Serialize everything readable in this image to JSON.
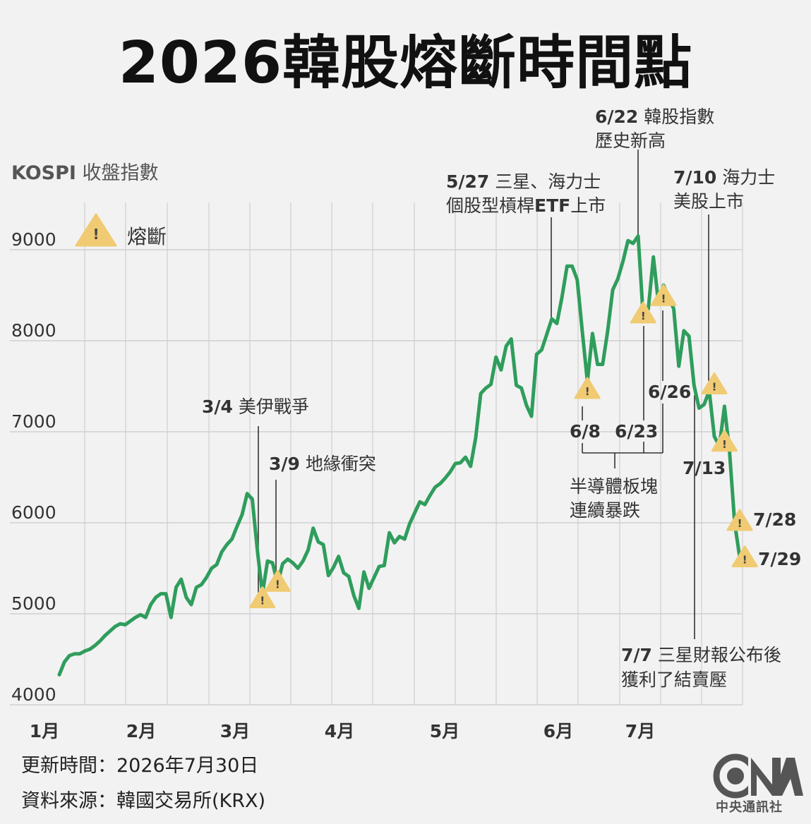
{
  "title": "2026韓股熔斷時間點",
  "chart_data": {
    "type": "line",
    "ylabel_bold": "KOSPI",
    "ylabel_rest": " 收盤指數",
    "legend_label": "熔斷",
    "yticks": [
      4000,
      5000,
      6000,
      7000,
      8000,
      9000
    ],
    "ylim": [
      4000,
      9300
    ],
    "month_labels": [
      "1月",
      "2月",
      "3月",
      "4月",
      "5月",
      "6月",
      "7月"
    ],
    "series": [
      {
        "color": "#2f9d5c",
        "values": [
          4330,
          4470,
          4540,
          4560,
          4560,
          4590,
          4610,
          4650,
          4700,
          4760,
          4810,
          4860,
          4890,
          4880,
          4920,
          4960,
          4990,
          4960,
          5100,
          5180,
          5220,
          5220,
          4960,
          5290,
          5380,
          5180,
          5100,
          5290,
          5320,
          5400,
          5500,
          5540,
          5680,
          5760,
          5820,
          5960,
          6090,
          6320,
          6260,
          5700,
          5220,
          5580,
          5560,
          5330,
          5550,
          5600,
          5560,
          5500,
          5580,
          5700,
          5940,
          5790,
          5760,
          5420,
          5510,
          5630,
          5450,
          5410,
          5200,
          5060,
          5460,
          5280,
          5400,
          5520,
          5530,
          5890,
          5780,
          5850,
          5820,
          5990,
          6110,
          6230,
          6200,
          6300,
          6390,
          6430,
          6490,
          6560,
          6650,
          6660,
          6720,
          6620,
          6930,
          7420,
          7480,
          7520,
          7820,
          7680,
          7940,
          8020,
          7510,
          7480,
          7290,
          7170,
          7850,
          7900,
          8070,
          8240,
          8190,
          8480,
          8820,
          8820,
          8670,
          8100,
          7550,
          8080,
          7740,
          7740,
          8110,
          8560,
          8680,
          8870,
          9100,
          9070,
          9150,
          8260,
          8350,
          8920,
          8410,
          8610,
          8480,
          8350,
          7720,
          8110,
          8050,
          7510,
          7260,
          7300,
          7450,
          6950,
          6840,
          7280,
          6780,
          6000,
          5620
        ]
      }
    ],
    "halt_markers": [
      {
        "label": "3/4",
        "x_index": 40,
        "value": 5150
      },
      {
        "label": "3/9",
        "x_index": 43,
        "value": 5330
      },
      {
        "label": "6/8",
        "x_index": 104,
        "value": 7450
      },
      {
        "label": "6/23",
        "x_index": 115,
        "value": 8280
      },
      {
        "label": "6/26",
        "x_index": 119,
        "value": 8470
      },
      {
        "label": "7/10",
        "x_index": 129,
        "value": 7500
      },
      {
        "label": "7/13",
        "x_index": 131,
        "value": 6870
      },
      {
        "label": "7/28",
        "x_index": 134,
        "value": 6000
      },
      {
        "label": "7/29",
        "x_index": 135,
        "value": 5600
      }
    ],
    "annotations": {
      "event_3_4": {
        "date": "3/4",
        "text": " 美伊戰爭"
      },
      "event_3_9": {
        "date": "3/9",
        "text": " 地緣衝突"
      },
      "event_5_27": {
        "date": "5/27",
        "line1": " 三星、海力士",
        "line2_pre": "個股型槓桿",
        "line2_bold": "ETF",
        "line2_post": "上市"
      },
      "event_6_22": {
        "date": "6/22",
        "line1": " 韓股指數",
        "line2": "歷史新高"
      },
      "event_7_10": {
        "date": "7/10",
        "line1": " 海力士",
        "line2": "美股上市"
      },
      "event_7_7": {
        "date": "7/7",
        "line1": " 三星財報公布後",
        "line2": "獲利了結賣壓"
      },
      "semis_group": {
        "line1": "半導體板塊",
        "line2": "連續暴跌"
      }
    }
  },
  "footer": {
    "updated": "更新時間：2026年7月30日",
    "source": "資料來源：韓國交易所(KRX)"
  },
  "logo_text": "中央通訊社"
}
